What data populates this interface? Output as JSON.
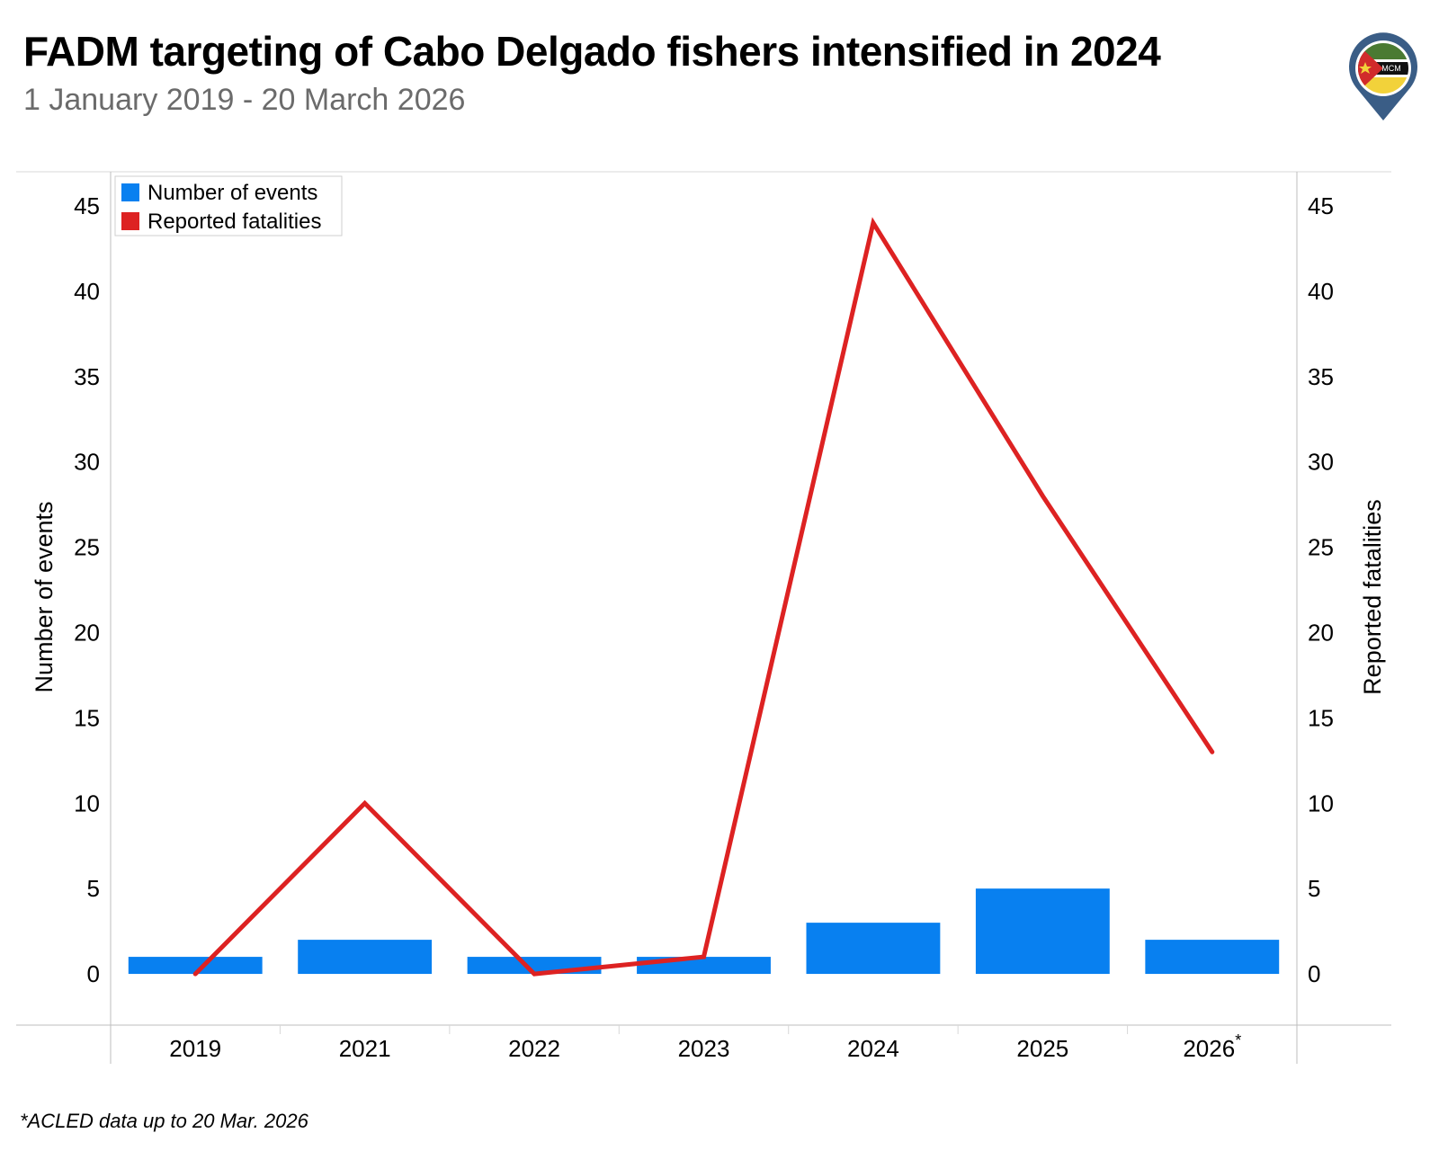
{
  "header": {
    "title": "FADM targeting of Cabo Delgado fishers intensified in 2024",
    "subtitle": "1 January 2019 - 20 March 2026"
  },
  "logo": {
    "text": "MCM",
    "icon": "mozambique-map-pin-logo"
  },
  "footnote": "*ACLED data up to 20 Mar. 2026",
  "chart_data": {
    "type": "bar",
    "categories": [
      "2019",
      "2021",
      "2022",
      "2023",
      "2024",
      "2025",
      "2026"
    ],
    "category_suffix": [
      "",
      "",
      "",
      "",
      "",
      "",
      "*"
    ],
    "series": [
      {
        "name": "Number of events",
        "type": "bar",
        "axis": "left",
        "color": "#0880F0",
        "values": [
          1,
          2,
          1,
          1,
          3,
          5,
          2
        ]
      },
      {
        "name": "Reported fatalities",
        "type": "line",
        "axis": "right",
        "color": "#DD2222",
        "values": [
          0,
          10,
          0,
          1,
          44,
          28,
          13
        ]
      }
    ],
    "ylabel": "Number of events",
    "y2label": "Reported fatalities",
    "ylim": [
      -3,
      47
    ],
    "y2lim": [
      -3,
      47
    ],
    "yticks": [
      0,
      5,
      10,
      15,
      20,
      25,
      30,
      35,
      40,
      45
    ],
    "legend": "top-left",
    "grid": false
  }
}
